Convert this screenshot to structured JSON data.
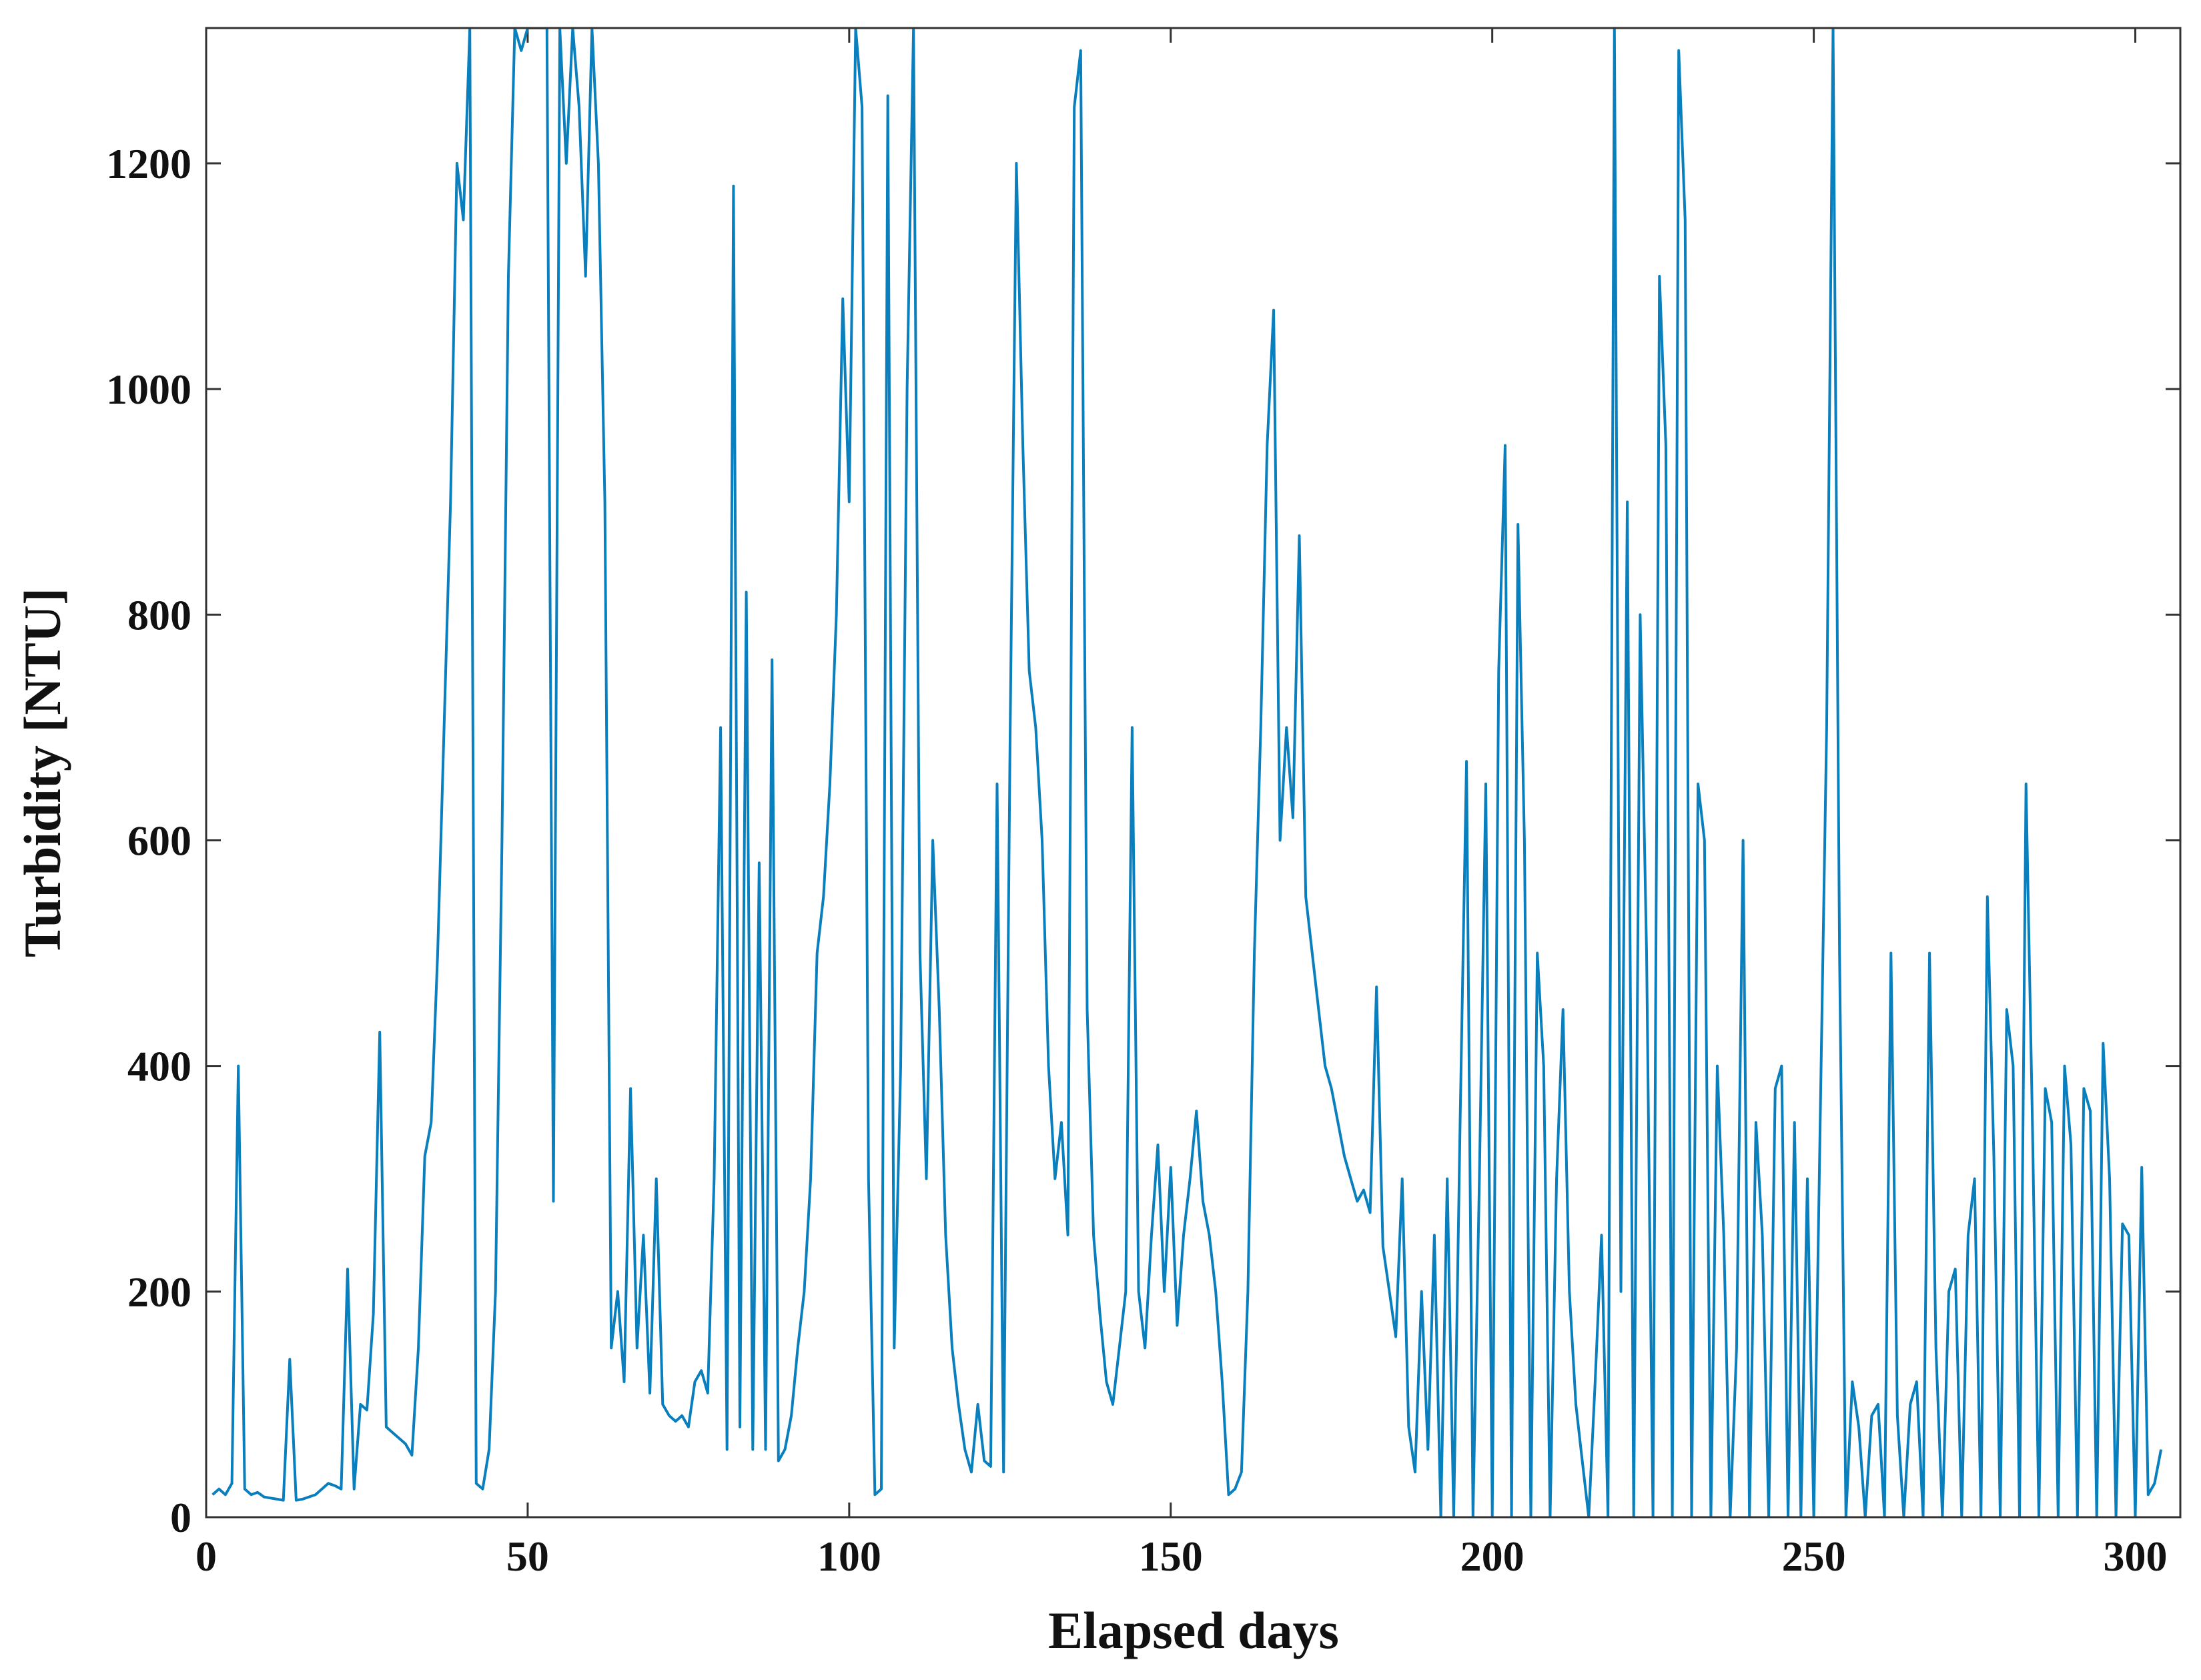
{
  "chart_data": {
    "type": "line",
    "xlabel": "Elapsed days",
    "ylabel": "Turbidity [NTU]",
    "color": "#0a7fbd",
    "xlim": [
      0,
      307
    ],
    "ylim": [
      0,
      1320
    ],
    "xticks": [
      0,
      50,
      100,
      150,
      200,
      250,
      300
    ],
    "yticks": [
      0,
      200,
      400,
      600,
      800,
      1000,
      1200
    ],
    "grid": false,
    "x": [
      1,
      2,
      3,
      4,
      5,
      6,
      7,
      8,
      9,
      10,
      11,
      12,
      13,
      14,
      15,
      16,
      17,
      18,
      19,
      20,
      21,
      22,
      23,
      24,
      25,
      26,
      27,
      28,
      29,
      30,
      31,
      32,
      33,
      34,
      35,
      36,
      37,
      38,
      39,
      40,
      41,
      42,
      43,
      44,
      45,
      46,
      47,
      48,
      49,
      50,
      51,
      52,
      53,
      54,
      55,
      56,
      57,
      58,
      59,
      60,
      61,
      62,
      63,
      64,
      65,
      66,
      67,
      68,
      69,
      70,
      71,
      72,
      73,
      74,
      75,
      76,
      77,
      78,
      79,
      80,
      81,
      82,
      83,
      84,
      85,
      86,
      87,
      88,
      89,
      90,
      91,
      92,
      93,
      94,
      95,
      96,
      97,
      98,
      99,
      100,
      101,
      102,
      103,
      104,
      105,
      106,
      107,
      108,
      109,
      110,
      111,
      112,
      113,
      114,
      115,
      116,
      117,
      118,
      119,
      120,
      121,
      122,
      123,
      124,
      125,
      126,
      127,
      128,
      129,
      130,
      131,
      132,
      133,
      134,
      135,
      136,
      137,
      138,
      139,
      140,
      141,
      142,
      143,
      144,
      145,
      146,
      147,
      148,
      149,
      150,
      151,
      152,
      153,
      154,
      155,
      156,
      157,
      158,
      159,
      160,
      161,
      162,
      163,
      164,
      165,
      166,
      167,
      168,
      169,
      170,
      171,
      172,
      173,
      174,
      175,
      176,
      177,
      178,
      179,
      180,
      181,
      182,
      183,
      184,
      185,
      186,
      187,
      188,
      189,
      190,
      191,
      192,
      193,
      194,
      195,
      196,
      197,
      198,
      199,
      200,
      201,
      202,
      203,
      204,
      205,
      206,
      207,
      208,
      209,
      210,
      211,
      212,
      213,
      214,
      215,
      216,
      217,
      218,
      219,
      220,
      221,
      222,
      223,
      224,
      225,
      226,
      227,
      228,
      229,
      230,
      231,
      232,
      233,
      234,
      235,
      236,
      237,
      238,
      239,
      240,
      241,
      242,
      243,
      244,
      245,
      246,
      247,
      248,
      249,
      250,
      251,
      252,
      253,
      254,
      255,
      256,
      257,
      258,
      259,
      260,
      261,
      262,
      263,
      264,
      265,
      266,
      267,
      268,
      269,
      270,
      271,
      272,
      273,
      274,
      275,
      276,
      277,
      278,
      279,
      280,
      281,
      282,
      283,
      284,
      285,
      286,
      287,
      288,
      289,
      290,
      291,
      292,
      293,
      294,
      295,
      296,
      297,
      298,
      299,
      300,
      301,
      302,
      303,
      304
    ],
    "values": [
      20,
      25,
      20,
      30,
      400,
      25,
      20,
      22,
      18,
      17,
      16,
      15,
      140,
      15,
      16,
      18,
      20,
      25,
      30,
      28,
      25,
      220,
      25,
      100,
      95,
      180,
      430,
      80,
      75,
      70,
      65,
      55,
      150,
      320,
      350,
      500,
      700,
      900,
      1200,
      1150,
      1320,
      30,
      25,
      60,
      200,
      600,
      1100,
      1320,
      1300,
      1320,
      1320,
      1320,
      1320,
      280,
      1320,
      1200,
      1320,
      1250,
      1100,
      1320,
      1200,
      900,
      150,
      200,
      120,
      380,
      150,
      250,
      110,
      300,
      100,
      90,
      85,
      90,
      80,
      120,
      130,
      110,
      300,
      700,
      60,
      1180,
      80,
      820,
      60,
      580,
      60,
      760,
      50,
      60,
      90,
      150,
      200,
      300,
      500,
      550,
      650,
      800,
      1080,
      900,
      1320,
      1250,
      300,
      20,
      25,
      1260,
      150,
      400,
      1000,
      1320,
      500,
      300,
      600,
      450,
      250,
      150,
      100,
      60,
      40,
      100,
      50,
      45,
      650,
      40,
      680,
      1200,
      950,
      750,
      700,
      600,
      400,
      300,
      350,
      250,
      1250,
      1300,
      450,
      250,
      180,
      120,
      100,
      150,
      200,
      700,
      200,
      150,
      250,
      330,
      200,
      310,
      170,
      250,
      300,
      360,
      280,
      250,
      200,
      120,
      20,
      25,
      40,
      200,
      500,
      700,
      950,
      1070,
      600,
      700,
      620,
      870,
      550,
      500,
      450,
      400,
      380,
      350,
      320,
      300,
      280,
      290,
      270,
      470,
      240,
      200,
      160,
      300,
      80,
      40,
      200,
      60,
      250,
      0,
      300,
      0,
      350,
      670,
      0,
      300,
      650,
      0,
      750,
      950,
      0,
      880,
      600,
      0,
      500,
      400,
      0,
      300,
      450,
      200,
      100,
      50,
      0,
      120,
      250,
      0,
      1320,
      200,
      900,
      0,
      800,
      500,
      0,
      1100,
      950,
      0,
      1300,
      1150,
      0,
      650,
      600,
      0,
      400,
      250,
      0,
      150,
      600,
      0,
      350,
      250,
      0,
      380,
      400,
      0,
      350,
      0,
      300,
      0,
      350,
      700,
      1320,
      500,
      0,
      120,
      80,
      0,
      90,
      100,
      0,
      500,
      90,
      0,
      100,
      120,
      0,
      500,
      150,
      0,
      200,
      220,
      0,
      250,
      300,
      0,
      550,
      320,
      0,
      450,
      400,
      0,
      650,
      350,
      0,
      380,
      350,
      0,
      400,
      330,
      0,
      380,
      360,
      0,
      420,
      300,
      0,
      260,
      250,
      0,
      310,
      20,
      30,
      60
    ]
  }
}
